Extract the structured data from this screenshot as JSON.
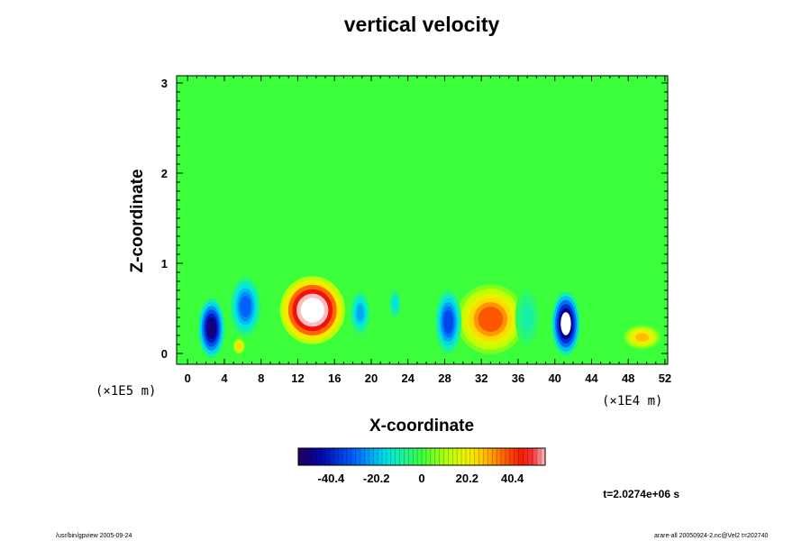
{
  "chart_data": {
    "type": "heatmap",
    "title": "vertical velocity",
    "xlabel": "X-coordinate",
    "ylabel": "Z-coordinate",
    "x_scale_label": "(×1E4 m)",
    "y_scale_label": "(×1E5 m)",
    "x_ticks": [
      "0",
      "4",
      "8",
      "12",
      "16",
      "20",
      "24",
      "28",
      "32",
      "36",
      "40",
      "44",
      "48",
      "52"
    ],
    "y_ticks": [
      "0",
      "1",
      "2",
      "3"
    ],
    "xlim": [
      -1.2,
      52.3
    ],
    "ylim": [
      -0.12,
      3.08
    ],
    "colorbar": {
      "min": -55,
      "max": 55,
      "ticks": [
        "-40.4",
        "-20.2",
        "0",
        "20.2",
        "40.4"
      ],
      "tick_values": [
        -40.4,
        -20.2,
        0,
        20.2,
        40.4
      ]
    },
    "features": [
      {
        "x": 13.6,
        "z": 0.48,
        "value": 72,
        "rx": 3.2,
        "rz": 0.34,
        "label": "strong updraft"
      },
      {
        "x": 33.0,
        "z": 0.38,
        "value": 38,
        "rx": 3.4,
        "rz": 0.35,
        "label": "updraft"
      },
      {
        "x": 41.2,
        "z": 0.33,
        "value": -58,
        "rx": 1.4,
        "rz": 0.32,
        "label": "strong downdraft"
      },
      {
        "x": 2.6,
        "z": 0.28,
        "value": -50,
        "rx": 1.3,
        "rz": 0.3,
        "label": "downdraft"
      },
      {
        "x": 6.3,
        "z": 0.52,
        "value": -30,
        "rx": 1.5,
        "rz": 0.3,
        "label": "downdraft"
      },
      {
        "x": 28.4,
        "z": 0.35,
        "value": -34,
        "rx": 1.3,
        "rz": 0.32,
        "label": "downdraft"
      },
      {
        "x": 49.5,
        "z": 0.18,
        "value": 28,
        "rx": 1.8,
        "rz": 0.12,
        "label": "updraft"
      },
      {
        "x": 5.6,
        "z": 0.08,
        "value": 26,
        "rx": 0.6,
        "rz": 0.08,
        "label": "updraft"
      },
      {
        "x": 18.8,
        "z": 0.45,
        "value": -22,
        "rx": 1.0,
        "rz": 0.22,
        "label": "downdraft"
      },
      {
        "x": 22.6,
        "z": 0.55,
        "value": -16,
        "rx": 0.6,
        "rz": 0.15,
        "label": "downdraft"
      },
      {
        "x": 37.0,
        "z": 0.4,
        "value": -10,
        "rx": 1.2,
        "rz": 0.3,
        "label": "weak downdraft"
      }
    ],
    "time_label": "t=2.0274e+06 s"
  },
  "footer": {
    "left": "/usr/bin/gpview 2005-09-24",
    "right": "arare-all 20050924-2.nc@Vel2 t=202740"
  }
}
